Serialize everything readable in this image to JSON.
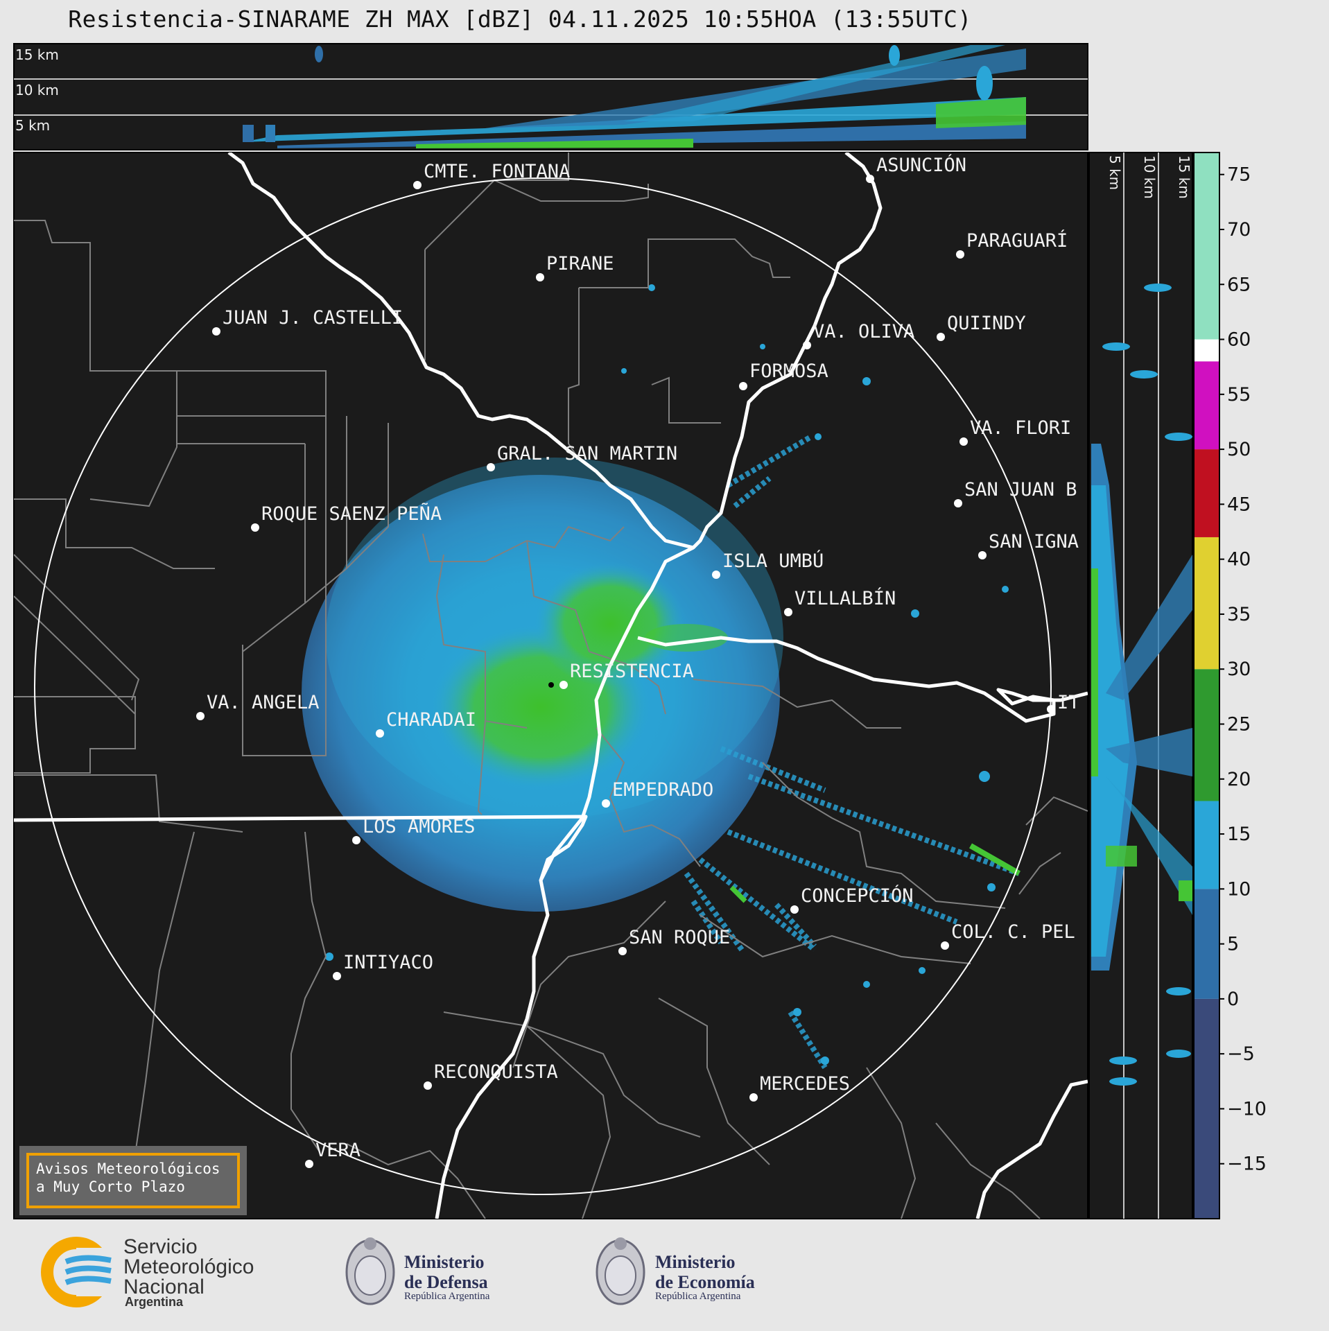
{
  "title": "Resistencia-SINARAME ZH MAX [dBZ] 04.11.2025 10:55HOA (13:55UTC)",
  "top_panel": {
    "height_labels": [
      "15 km",
      "10 km",
      "5 km"
    ]
  },
  "side_panel": {
    "height_labels": [
      "5 km",
      "10 km",
      "15 km"
    ]
  },
  "cities": [
    {
      "name": "CMTE. FONTANA"
    },
    {
      "name": "ASUNCIÓN"
    },
    {
      "name": "PARAGUARÍ"
    },
    {
      "name": "PIRANE"
    },
    {
      "name": "JUAN J. CASTELLI"
    },
    {
      "name": "VA. OLIVA"
    },
    {
      "name": "QUIINDY"
    },
    {
      "name": "FORMOSA"
    },
    {
      "name": "VA. FLORI"
    },
    {
      "name": "GRAL. SAN MARTIN"
    },
    {
      "name": "SAN JUAN B"
    },
    {
      "name": "ROQUE SAENZ PEÑA"
    },
    {
      "name": "SAN IGNA"
    },
    {
      "name": "ISLA UMBÚ"
    },
    {
      "name": "VILLALBÍN"
    },
    {
      "name": "RESISTENCIA"
    },
    {
      "name": "VA. ANGELA"
    },
    {
      "name": "CHARADAI"
    },
    {
      "name": "IT"
    },
    {
      "name": "EMPEDRADO"
    },
    {
      "name": "LOS AMORES"
    },
    {
      "name": "CONCEPCIÓN"
    },
    {
      "name": "SAN ROQUE"
    },
    {
      "name": "COL. C. PEL"
    },
    {
      "name": "INTIYACO"
    },
    {
      "name": "RECONQUISTA"
    },
    {
      "name": "MERCEDES"
    },
    {
      "name": "VERA"
    }
  ],
  "colorbar": {
    "unit": "dBZ",
    "ticks": [
      "75",
      "70",
      "65",
      "60",
      "55",
      "50",
      "45",
      "40",
      "35",
      "30",
      "25",
      "20",
      "15",
      "10",
      "5",
      "0",
      "−5",
      "−10",
      "−15"
    ],
    "bands": [
      {
        "from": -20,
        "to": 0,
        "color": "#3a4a7a"
      },
      {
        "from": 0,
        "to": 10,
        "color": "#2f6fa8"
      },
      {
        "from": 10,
        "to": 18,
        "color": "#2aa6d8"
      },
      {
        "from": 18,
        "to": 30,
        "color": "#2f9a2f"
      },
      {
        "from": 30,
        "to": 42,
        "color": "#e0d030"
      },
      {
        "from": 42,
        "to": 50,
        "color": "#c01020"
      },
      {
        "from": 50,
        "to": 58,
        "color": "#d010c0"
      },
      {
        "from": 58,
        "to": 60,
        "color": "#ffffff"
      },
      {
        "from": 60,
        "to": 77,
        "color": "#8fe0c0"
      }
    ]
  },
  "warning_box": {
    "line1": "Avisos Meteorológicos",
    "line2": "a Muy Corto Plazo"
  },
  "logos": {
    "smn": {
      "line1": "Servicio",
      "line2": "Meteorológico",
      "line3": "Nacional",
      "sub": "Argentina"
    },
    "defensa": {
      "line1": "Ministerio",
      "line2": "de Defensa",
      "sub": "República Argentina"
    },
    "economia": {
      "line1": "Ministerio",
      "line2": "de Economía",
      "sub": "República Argentina"
    }
  },
  "colors": {
    "background": "#1b1b1b",
    "frame": "#e7e7e7",
    "accent_orange": "#f0a000"
  }
}
